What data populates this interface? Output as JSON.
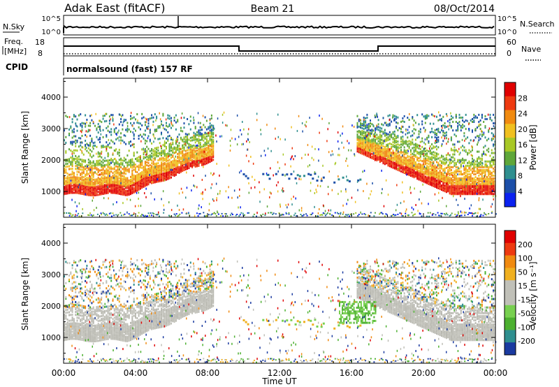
{
  "header": {
    "station": "Adak East (fitACF)",
    "beam": "Beam 21",
    "date": "08/Oct/2014"
  },
  "status_panel": {
    "nsky_label": "N.Sky",
    "nsearch_label": "N.Search",
    "noise_ticks": [
      "10^5",
      "10^0"
    ],
    "freq_label_1": "Freq.",
    "freq_label_2": "[MHz]",
    "freq_ticks": [
      "18",
      "8"
    ],
    "nave_label": "Nave",
    "nave_ticks": [
      "60",
      "0"
    ],
    "cpid_label": "CPID",
    "cpid_text": "normalsound (fast) 157 RF"
  },
  "chart_data": [
    {
      "type": "heatmap",
      "title": "",
      "xlabel": "Time UT",
      "ylabel": "Slant Range [km]",
      "x_ticks": [
        "00:00",
        "04:00",
        "08:00",
        "12:00",
        "16:00",
        "20:00",
        "00:00"
      ],
      "y_ticks": [
        "1000",
        "2000",
        "3000",
        "4000"
      ],
      "xlim_hours": [
        0,
        24
      ],
      "ylim_km": [
        180,
        4600
      ],
      "colorbar": {
        "label": "Power [dB]",
        "ticks": [
          "4",
          "8",
          "12",
          "16",
          "20",
          "24",
          "28"
        ],
        "range": [
          0,
          30
        ],
        "colors": [
          "#0b22f0",
          "#1c4fa8",
          "#2f8f8f",
          "#5fa73a",
          "#a8c826",
          "#f0c020",
          "#f08a10",
          "#ee3a10",
          "#e00000"
        ]
      },
      "features": [
        {
          "name": "night-band-ground-scatter",
          "from_hour": 0,
          "to_hour": 8.3,
          "range_km": [
            850,
            3500
          ]
        },
        {
          "name": "sea-scatter-noon",
          "from_hour": 9.5,
          "to_hour": 16.5,
          "range_km": [
            1350,
            1700
          ]
        },
        {
          "name": "evening-band",
          "from_hour": 16.2,
          "to_hour": 24,
          "range_km": [
            900,
            3500
          ]
        }
      ]
    },
    {
      "type": "heatmap",
      "title": "",
      "xlabel": "Time UT",
      "ylabel": "Slant Range [km]",
      "x_ticks": [
        "00:00",
        "04:00",
        "08:00",
        "12:00",
        "16:00",
        "20:00",
        "00:00"
      ],
      "y_ticks": [
        "1000",
        "2000",
        "3000",
        "4000"
      ],
      "xlim_hours": [
        0,
        24
      ],
      "ylim_km": [
        180,
        4600
      ],
      "colorbar": {
        "label": "Velocity [m s⁻¹]",
        "ticks": [
          "200",
          "100",
          "50",
          "15",
          "-15",
          "-50",
          "-100",
          "-200"
        ],
        "range": [
          -250,
          250
        ],
        "colors": [
          "#1a3aa0",
          "#2f8f8f",
          "#4cb030",
          "#78d050",
          "#c0c0b8",
          "#c0c0b8",
          "#f0b020",
          "#f08a10",
          "#ee3a10",
          "#e00000"
        ]
      }
    }
  ]
}
